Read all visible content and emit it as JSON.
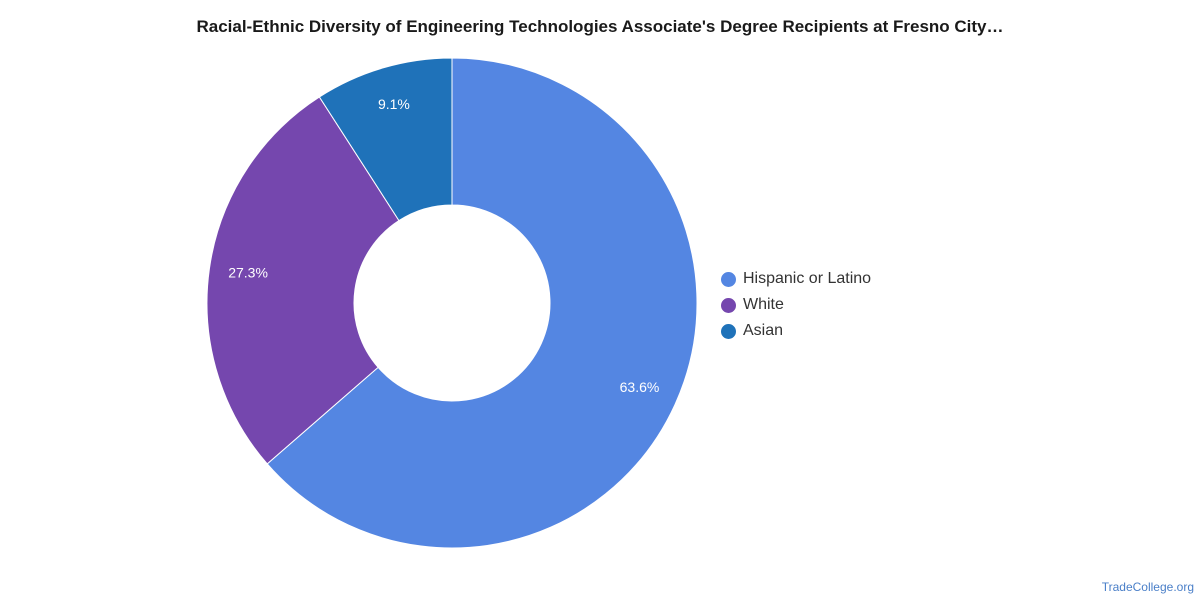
{
  "chart_data": {
    "type": "pie",
    "title": "Racial-Ethnic Diversity of Engineering Technologies Associate's Degree Recipients at Fresno City…",
    "donut": true,
    "legend_position": "right",
    "slices": [
      {
        "label": "Hispanic or Latino",
        "value": 63.6,
        "display": "63.6%",
        "color": "#5486e2"
      },
      {
        "label": "White",
        "value": 27.3,
        "display": "27.3%",
        "color": "#7547ae"
      },
      {
        "label": "Asian",
        "value": 9.1,
        "display": "9.1%",
        "color": "#1f72b9"
      }
    ]
  },
  "footer": {
    "brand": "TradeCollege.org"
  }
}
